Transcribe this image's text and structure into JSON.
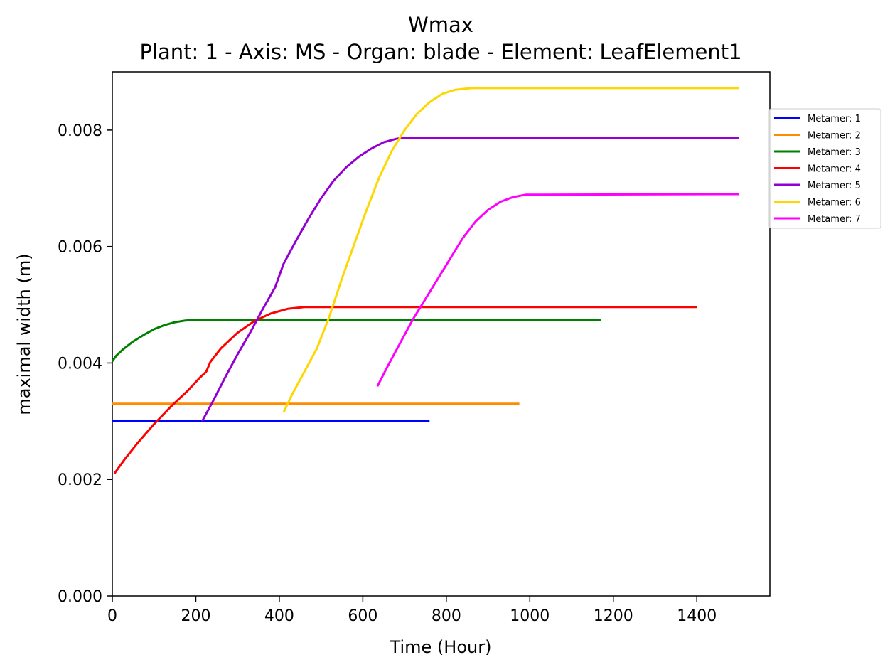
{
  "chart_data": {
    "type": "line",
    "title": "Wmax",
    "subtitle": "Plant: 1 - Axis: MS - Organ: blade - Element: LeafElement1",
    "xlabel": "Time (Hour)",
    "ylabel": "maximal width (m)",
    "xlim": [
      0,
      1575
    ],
    "ylim": [
      0,
      0.009
    ],
    "xticks": [
      0,
      200,
      400,
      600,
      800,
      1000,
      1200,
      1400
    ],
    "yticks": [
      0.0,
      0.002,
      0.004,
      0.006,
      0.008
    ],
    "ytick_labels": [
      "0.000",
      "0.002",
      "0.004",
      "0.006",
      "0.008"
    ],
    "grid": false,
    "legend_position": "right, outside plot area, upper",
    "series": [
      {
        "name": "Metamer: 1",
        "color": "#0000ff",
        "points": [
          [
            0,
            0.003
          ],
          [
            760,
            0.003
          ]
        ]
      },
      {
        "name": "Metamer: 2",
        "color": "#ff8c00",
        "points": [
          [
            0,
            0.0033
          ],
          [
            975,
            0.0033
          ]
        ]
      },
      {
        "name": "Metamer: 3",
        "color": "#008000",
        "points": [
          [
            0,
            0.00403
          ],
          [
            10,
            0.00413
          ],
          [
            25,
            0.00423
          ],
          [
            50,
            0.00437
          ],
          [
            75,
            0.00448
          ],
          [
            100,
            0.00458
          ],
          [
            125,
            0.00465
          ],
          [
            150,
            0.0047
          ],
          [
            175,
            0.00473
          ],
          [
            200,
            0.00474
          ],
          [
            1170,
            0.00474
          ]
        ]
      },
      {
        "name": "Metamer: 4",
        "color": "#ff0000",
        "points": [
          [
            5,
            0.0021
          ],
          [
            30,
            0.00235
          ],
          [
            60,
            0.00262
          ],
          [
            100,
            0.00295
          ],
          [
            140,
            0.00325
          ],
          [
            180,
            0.00352
          ],
          [
            210,
            0.00375
          ],
          [
            225,
            0.00385
          ],
          [
            235,
            0.00402
          ],
          [
            260,
            0.00425
          ],
          [
            300,
            0.00452
          ],
          [
            340,
            0.00472
          ],
          [
            380,
            0.00485
          ],
          [
            420,
            0.00493
          ],
          [
            460,
            0.00496
          ],
          [
            1400,
            0.00496
          ]
        ]
      },
      {
        "name": "Metamer: 5",
        "color": "#9400d3",
        "points": [
          [
            215,
            0.003
          ],
          [
            240,
            0.00333
          ],
          [
            270,
            0.00375
          ],
          [
            300,
            0.00415
          ],
          [
            330,
            0.00452
          ],
          [
            360,
            0.00492
          ],
          [
            390,
            0.0053
          ],
          [
            410,
            0.0057
          ],
          [
            440,
            0.0061
          ],
          [
            470,
            0.00648
          ],
          [
            500,
            0.00683
          ],
          [
            530,
            0.00713
          ],
          [
            560,
            0.00736
          ],
          [
            590,
            0.00754
          ],
          [
            620,
            0.00768
          ],
          [
            650,
            0.00779
          ],
          [
            680,
            0.00785
          ],
          [
            700,
            0.00787
          ],
          [
            1500,
            0.00787
          ]
        ]
      },
      {
        "name": "Metamer: 6",
        "color": "#ffd700",
        "points": [
          [
            410,
            0.00315
          ],
          [
            430,
            0.00345
          ],
          [
            460,
            0.00385
          ],
          [
            490,
            0.00425
          ],
          [
            520,
            0.0048
          ],
          [
            550,
            0.00545
          ],
          [
            580,
            0.00605
          ],
          [
            610,
            0.00665
          ],
          [
            640,
            0.0072
          ],
          [
            670,
            0.00765
          ],
          [
            700,
            0.008
          ],
          [
            730,
            0.00828
          ],
          [
            760,
            0.00848
          ],
          [
            790,
            0.00862
          ],
          [
            820,
            0.00869
          ],
          [
            860,
            0.00872
          ],
          [
            1500,
            0.00872
          ]
        ]
      },
      {
        "name": "Metamer: 7",
        "color": "#ff00ff",
        "points": [
          [
            635,
            0.0036
          ],
          [
            660,
            0.00395
          ],
          [
            690,
            0.00435
          ],
          [
            720,
            0.00475
          ],
          [
            750,
            0.0051
          ],
          [
            780,
            0.00545
          ],
          [
            810,
            0.0058
          ],
          [
            840,
            0.00615
          ],
          [
            870,
            0.00643
          ],
          [
            900,
            0.00663
          ],
          [
            930,
            0.00677
          ],
          [
            960,
            0.00685
          ],
          [
            990,
            0.00689
          ],
          [
            1500,
            0.0069
          ]
        ]
      }
    ]
  }
}
